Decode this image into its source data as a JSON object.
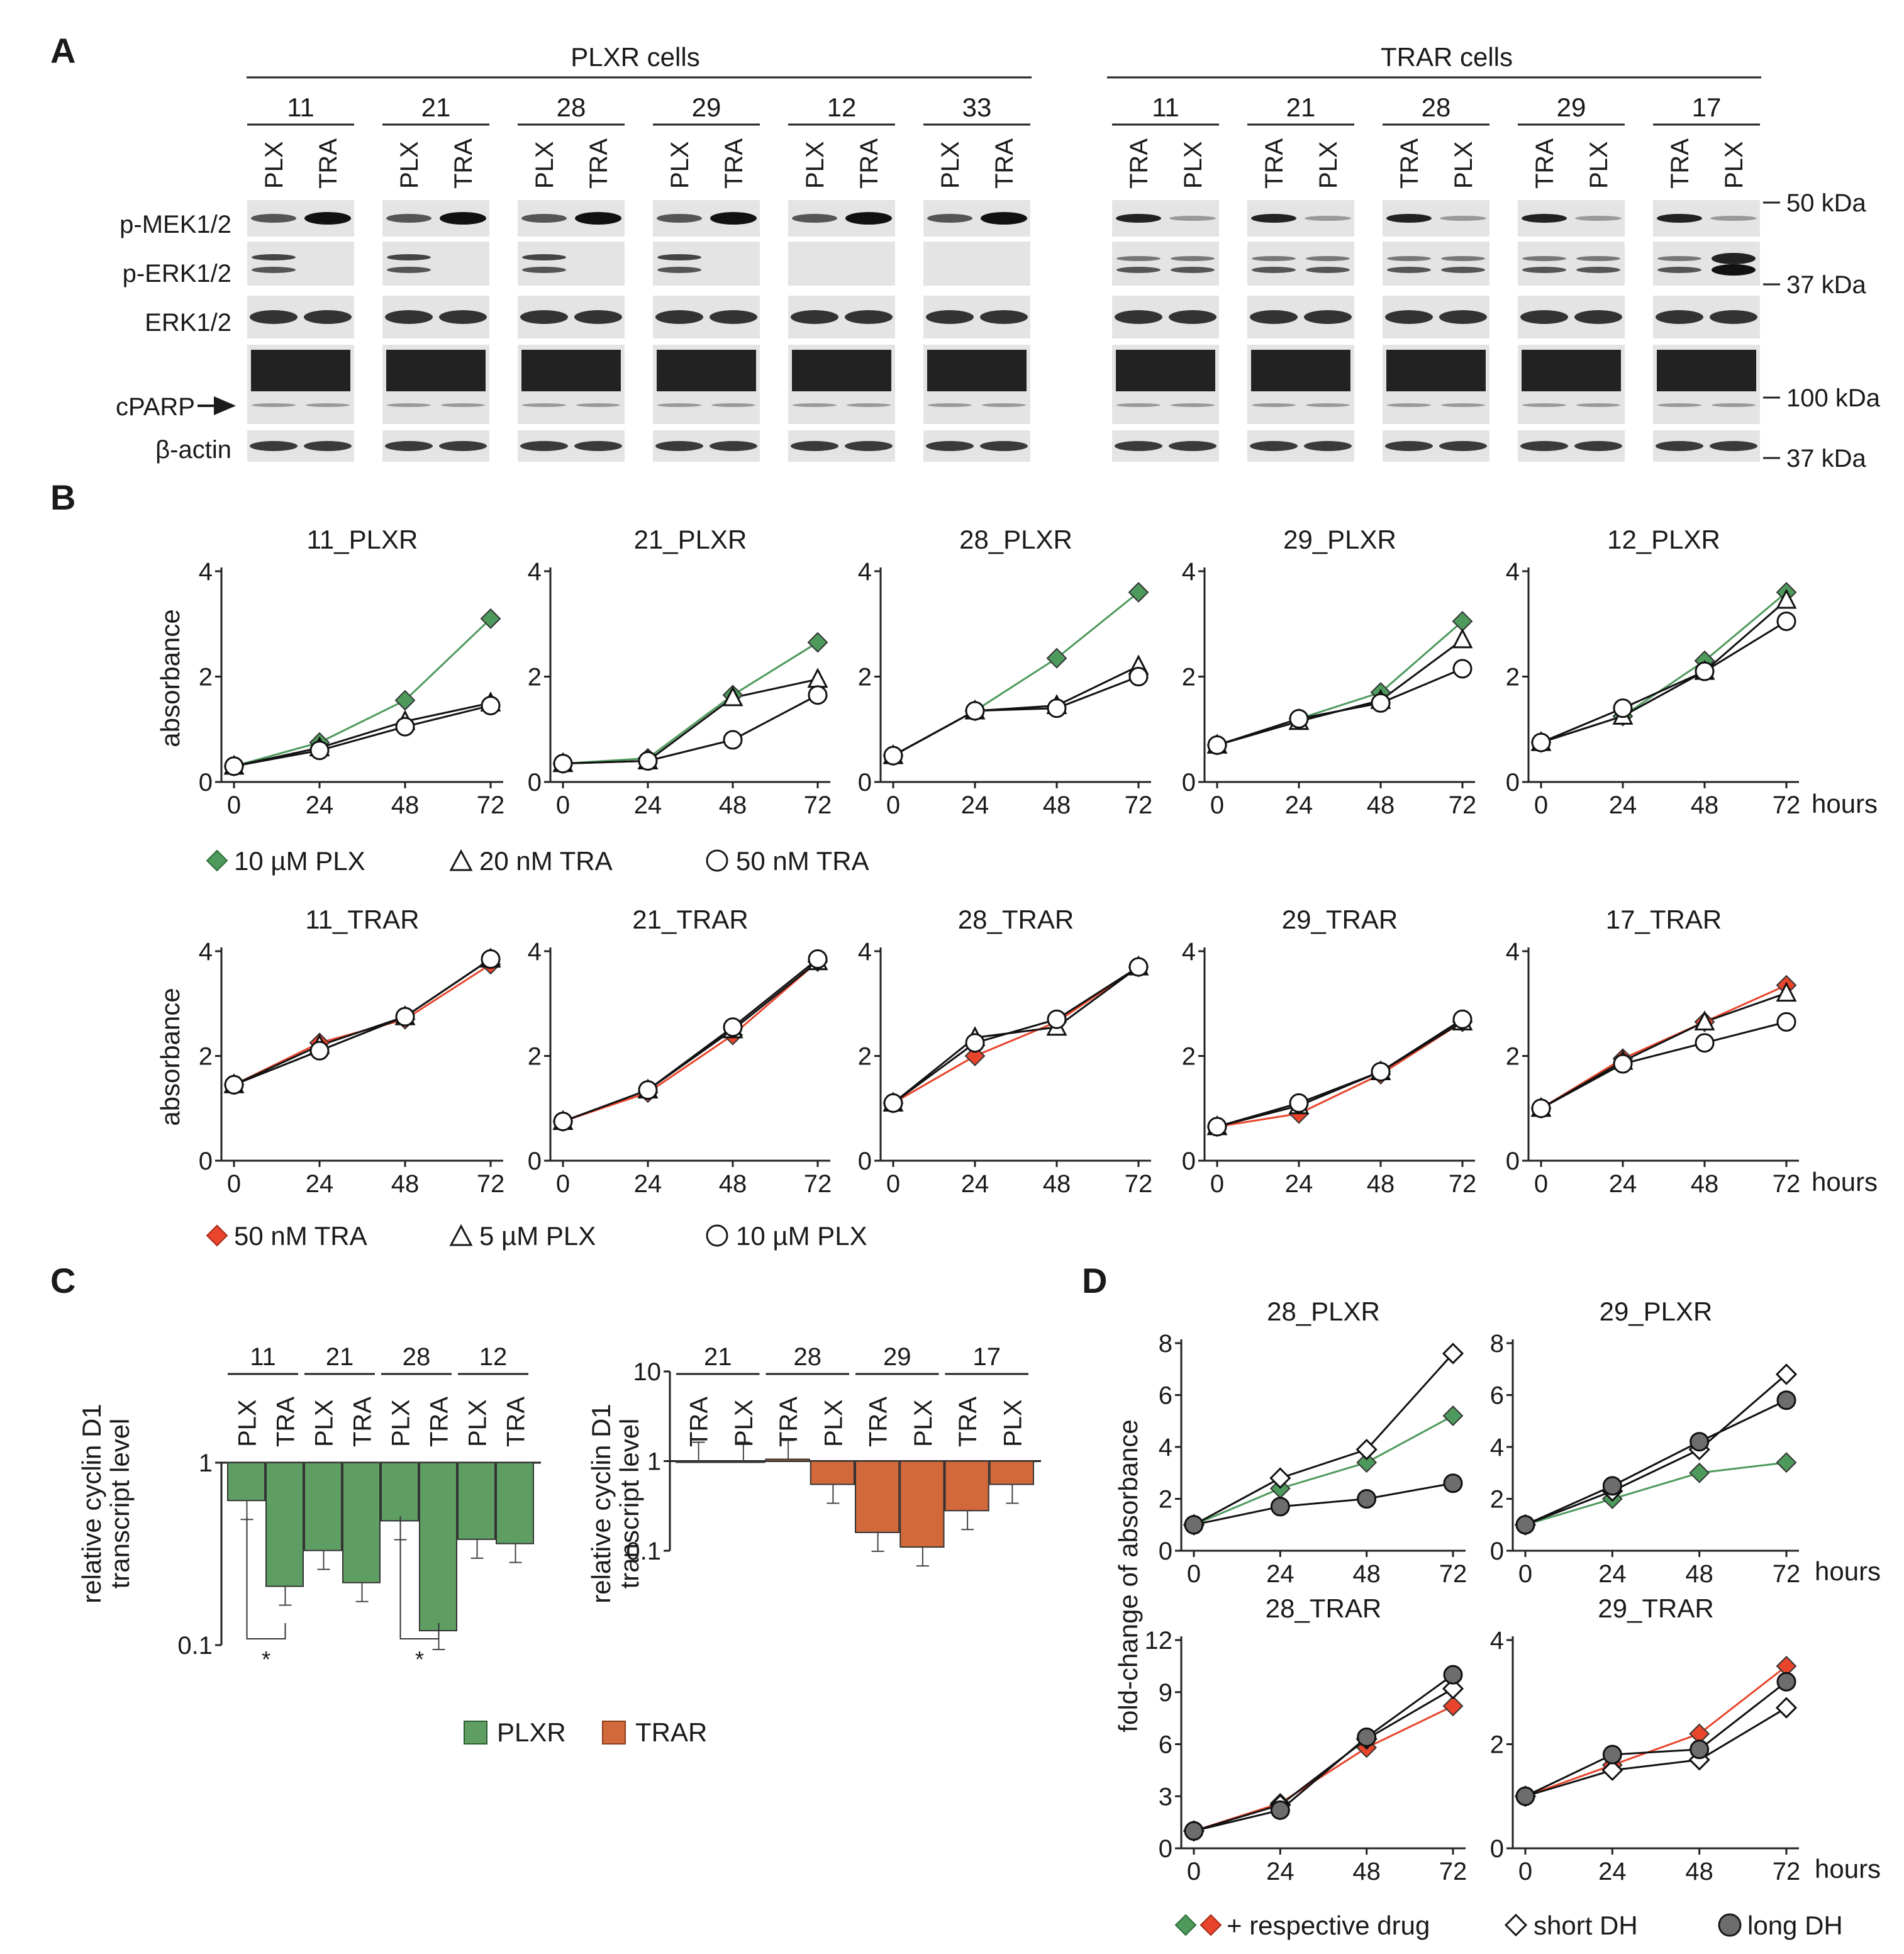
{
  "panel_labels": {
    "a": "A",
    "b": "B",
    "c": "C",
    "d": "D"
  },
  "blot": {
    "group_titles": [
      "PLXR cells",
      "TRAR cells"
    ],
    "plxr_lines": [
      "11",
      "21",
      "28",
      "29",
      "12",
      "33"
    ],
    "trar_lines": [
      "11",
      "21",
      "28",
      "29",
      "17"
    ],
    "lane_labels_plxr": [
      "PLX",
      "TRA"
    ],
    "lane_labels_trar": [
      "TRA",
      "PLX"
    ],
    "row_labels": [
      "p-MEK1/2",
      "p-ERK1/2",
      "ERK1/2",
      "cPARP",
      "β-actin"
    ],
    "markers": [
      "50 kDa",
      "37 kDa",
      "100 kDa",
      "37 kDa"
    ]
  },
  "growth_legend_plxr": [
    "10 µM PLX",
    "20 nM TRA",
    "50 nM TRA"
  ],
  "growth_legend_trar": [
    "50 nM TRA",
    "5 µM PLX",
    "10 µM PLX"
  ],
  "hours_label": "hours",
  "absorbance_label": "absorbance",
  "cyclin_ylabel_line1": "relative cyclin D1",
  "cyclin_ylabel_line2": "transcript level",
  "cyclin_legend": [
    "PLXR",
    "TRAR"
  ],
  "fold_ylabel": "fold-change of absorbance",
  "fold_legend": [
    "+ respective drug",
    "short DH",
    "long DH"
  ],
  "colors": {
    "plx_green": "#4e9a5c",
    "tra_red": "#e8452c",
    "trar_bar": "#d2693a",
    "plxr_bar": "#5f9e63",
    "dark_gray": "#6d6d6d"
  },
  "chart_data": [
    {
      "type": "line",
      "title": "11_PLXR",
      "x": [
        0,
        24,
        48,
        72
      ],
      "ylim": [
        0,
        4
      ],
      "yticks": [
        0,
        2,
        4
      ],
      "series": [
        {
          "name": "10 µM PLX",
          "values": [
            0.3,
            0.75,
            1.55,
            3.1
          ]
        },
        {
          "name": "20 nM TRA",
          "values": [
            0.3,
            0.65,
            1.15,
            1.5
          ]
        },
        {
          "name": "50 nM TRA",
          "values": [
            0.3,
            0.6,
            1.05,
            1.45
          ]
        }
      ]
    },
    {
      "type": "line",
      "title": "21_PLXR",
      "x": [
        0,
        24,
        48,
        72
      ],
      "ylim": [
        0,
        4
      ],
      "yticks": [
        0,
        2,
        4
      ],
      "series": [
        {
          "name": "10 µM PLX",
          "values": [
            0.35,
            0.45,
            1.65,
            2.65
          ]
        },
        {
          "name": "20 nM TRA",
          "values": [
            0.35,
            0.4,
            1.6,
            1.95
          ]
        },
        {
          "name": "50 nM TRA",
          "values": [
            0.35,
            0.4,
            0.8,
            1.65
          ]
        }
      ]
    },
    {
      "type": "line",
      "title": "28_PLXR",
      "x": [
        0,
        24,
        48,
        72
      ],
      "ylim": [
        0,
        4
      ],
      "yticks": [
        0,
        2,
        4
      ],
      "series": [
        {
          "name": "10 µM PLX",
          "values": [
            0.5,
            1.35,
            2.35,
            3.6
          ]
        },
        {
          "name": "20 nM TRA",
          "values": [
            0.5,
            1.35,
            1.45,
            2.2
          ]
        },
        {
          "name": "50 nM TRA",
          "values": [
            0.5,
            1.35,
            1.4,
            2.0
          ]
        }
      ]
    },
    {
      "type": "line",
      "title": "29_PLXR",
      "x": [
        0,
        24,
        48,
        72
      ],
      "ylim": [
        0,
        4
      ],
      "yticks": [
        0,
        2,
        4
      ],
      "series": [
        {
          "name": "10 µM PLX",
          "values": [
            0.7,
            1.2,
            1.7,
            3.05
          ]
        },
        {
          "name": "20 nM TRA",
          "values": [
            0.7,
            1.15,
            1.55,
            2.7
          ]
        },
        {
          "name": "50 nM TRA",
          "values": [
            0.7,
            1.2,
            1.5,
            2.15
          ]
        }
      ]
    },
    {
      "type": "line",
      "title": "12_PLXR",
      "x": [
        0,
        24,
        48,
        72
      ],
      "ylim": [
        0,
        4
      ],
      "yticks": [
        0,
        2,
        4
      ],
      "series": [
        {
          "name": "10 µM PLX",
          "values": [
            0.75,
            1.25,
            2.3,
            3.6
          ]
        },
        {
          "name": "20 nM TRA",
          "values": [
            0.75,
            1.25,
            2.1,
            3.45
          ]
        },
        {
          "name": "50 nM TRA",
          "values": [
            0.75,
            1.4,
            2.1,
            3.05
          ]
        }
      ]
    },
    {
      "type": "line",
      "title": "11_TRAR",
      "x": [
        0,
        24,
        48,
        72
      ],
      "ylim": [
        0,
        4
      ],
      "yticks": [
        0,
        2,
        4
      ],
      "series": [
        {
          "name": "50 nM TRA",
          "values": [
            1.45,
            2.25,
            2.7,
            3.75
          ]
        },
        {
          "name": "5 µM PLX",
          "values": [
            1.45,
            2.2,
            2.75,
            3.85
          ]
        },
        {
          "name": "10 µM PLX",
          "values": [
            1.45,
            2.1,
            2.75,
            3.85
          ]
        }
      ]
    },
    {
      "type": "line",
      "title": "21_TRAR",
      "x": [
        0,
        24,
        48,
        72
      ],
      "ylim": [
        0,
        4
      ],
      "yticks": [
        0,
        2,
        4
      ],
      "series": [
        {
          "name": "50 nM TRA",
          "values": [
            0.75,
            1.3,
            2.4,
            3.8
          ]
        },
        {
          "name": "5 µM PLX",
          "values": [
            0.75,
            1.35,
            2.5,
            3.8
          ]
        },
        {
          "name": "10 µM PLX",
          "values": [
            0.75,
            1.35,
            2.55,
            3.85
          ]
        }
      ]
    },
    {
      "type": "line",
      "title": "28_TRAR",
      "x": [
        0,
        24,
        48,
        72
      ],
      "ylim": [
        0,
        4
      ],
      "yticks": [
        0,
        2,
        4
      ],
      "series": [
        {
          "name": "50 nM TRA",
          "values": [
            1.1,
            2.0,
            2.65,
            3.7
          ]
        },
        {
          "name": "5 µM PLX",
          "values": [
            1.1,
            2.35,
            2.55,
            3.7
          ]
        },
        {
          "name": "10 µM PLX",
          "values": [
            1.1,
            2.25,
            2.7,
            3.7
          ]
        }
      ]
    },
    {
      "type": "line",
      "title": "29_TRAR",
      "x": [
        0,
        24,
        48,
        72
      ],
      "ylim": [
        0,
        4
      ],
      "yticks": [
        0,
        2,
        4
      ],
      "series": [
        {
          "name": "50 nM TRA",
          "values": [
            0.65,
            0.9,
            1.65,
            2.65
          ]
        },
        {
          "name": "5 µM PLX",
          "values": [
            0.65,
            1.05,
            1.7,
            2.65
          ]
        },
        {
          "name": "10 µM PLX",
          "values": [
            0.65,
            1.1,
            1.7,
            2.7
          ]
        }
      ]
    },
    {
      "type": "line",
      "title": "17_TRAR",
      "x": [
        0,
        24,
        48,
        72
      ],
      "ylim": [
        0,
        4
      ],
      "yticks": [
        0,
        2,
        4
      ],
      "series": [
        {
          "name": "50 nM TRA",
          "values": [
            1.0,
            1.95,
            2.65,
            3.35
          ]
        },
        {
          "name": "5 µM PLX",
          "values": [
            1.0,
            1.9,
            2.65,
            3.2
          ]
        },
        {
          "name": "10 µM PLX",
          "values": [
            1.0,
            1.85,
            2.25,
            2.65
          ]
        }
      ]
    },
    {
      "type": "bar",
      "scale": "log",
      "ylabel": "relative cyclin D1 transcript level",
      "ylim": [
        0.1,
        1
      ],
      "yticks": [
        "0.1",
        "1"
      ],
      "categories": [
        "11 PLX",
        "11 TRA",
        "21 PLX",
        "21 TRA",
        "28 PLX",
        "28 TRA",
        "12 PLX",
        "12 TRA"
      ],
      "values": [
        0.62,
        0.21,
        0.33,
        0.22,
        0.48,
        0.12,
        0.38,
        0.36
      ],
      "legend": "PLXR",
      "groups": [
        "11",
        "21",
        "28",
        "12"
      ],
      "annotations": [
        "*",
        "*"
      ]
    },
    {
      "type": "bar",
      "scale": "log",
      "ylabel": "relative cyclin D1 transcript level",
      "ylim": [
        0.1,
        10
      ],
      "yticks": [
        "0.1",
        "1",
        "10"
      ],
      "categories": [
        "21 TRA",
        "21 PLX",
        "28 TRA",
        "28 PLX",
        "29 TRA",
        "29 PLX",
        "17 TRA",
        "17 PLX"
      ],
      "values": [
        1.0,
        1.0,
        1.05,
        0.55,
        0.16,
        0.11,
        0.28,
        0.55
      ],
      "legend": "TRAR",
      "groups": [
        "21",
        "28",
        "29",
        "17"
      ]
    },
    {
      "type": "line",
      "title": "28_PLXR",
      "x": [
        0,
        24,
        48,
        72
      ],
      "ylim": [
        0,
        8
      ],
      "yticks": [
        0,
        2,
        4,
        6,
        8
      ],
      "series": [
        {
          "name": "+ respective drug",
          "values": [
            1.0,
            2.4,
            3.4,
            5.2
          ]
        },
        {
          "name": "short DH",
          "values": [
            1.0,
            2.8,
            3.9,
            7.6
          ]
        },
        {
          "name": "long DH",
          "values": [
            1.0,
            1.7,
            2.0,
            2.6
          ]
        }
      ]
    },
    {
      "type": "line",
      "title": "29_PLXR",
      "x": [
        0,
        24,
        48,
        72
      ],
      "ylim": [
        0,
        8
      ],
      "yticks": [
        0,
        2,
        4,
        6,
        8
      ],
      "series": [
        {
          "name": "+ respective drug",
          "values": [
            1.0,
            2.0,
            3.0,
            3.4
          ]
        },
        {
          "name": "short DH",
          "values": [
            1.0,
            2.3,
            3.9,
            6.8
          ]
        },
        {
          "name": "long DH",
          "values": [
            1.0,
            2.5,
            4.2,
            5.8
          ]
        }
      ]
    },
    {
      "type": "line",
      "title": "28_TRAR",
      "x": [
        0,
        24,
        48,
        72
      ],
      "ylim": [
        0,
        12
      ],
      "yticks": [
        0,
        3,
        6,
        9,
        12
      ],
      "series": [
        {
          "name": "+ respective drug",
          "values": [
            1.0,
            2.6,
            5.8,
            8.2
          ]
        },
        {
          "name": "short DH",
          "values": [
            1.0,
            2.5,
            6.3,
            9.2
          ]
        },
        {
          "name": "long DH",
          "values": [
            1.0,
            2.2,
            6.4,
            10.0
          ]
        }
      ]
    },
    {
      "type": "line",
      "title": "29_TRAR",
      "x": [
        0,
        24,
        48,
        72
      ],
      "ylim": [
        0,
        4
      ],
      "yticks": [
        0,
        2,
        4
      ],
      "series": [
        {
          "name": "+ respective drug",
          "values": [
            1.0,
            1.6,
            2.2,
            3.5
          ]
        },
        {
          "name": "short DH",
          "values": [
            1.0,
            1.5,
            1.7,
            2.7
          ]
        },
        {
          "name": "long DH",
          "values": [
            1.0,
            1.8,
            1.9,
            3.2
          ]
        }
      ]
    }
  ]
}
